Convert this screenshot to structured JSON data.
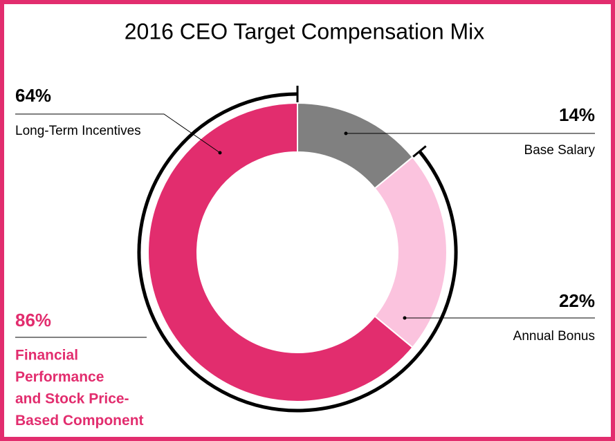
{
  "chart_data": {
    "type": "donut",
    "title": "2016 CEO Target Compensation Mix",
    "categories": [
      "Base Salary",
      "Annual Bonus",
      "Long-Term Incentives"
    ],
    "values": [
      14,
      22,
      64
    ],
    "value_labels": [
      "14%",
      "22%",
      "64%"
    ],
    "colors": [
      "#808080",
      "#fbc3de",
      "#e22d6e"
    ],
    "annotation": {
      "value": 86,
      "label": "86%",
      "color": "#e22d6e",
      "text": [
        "Financial",
        "Performance",
        "and Stock Price-",
        "Based Component"
      ]
    }
  }
}
